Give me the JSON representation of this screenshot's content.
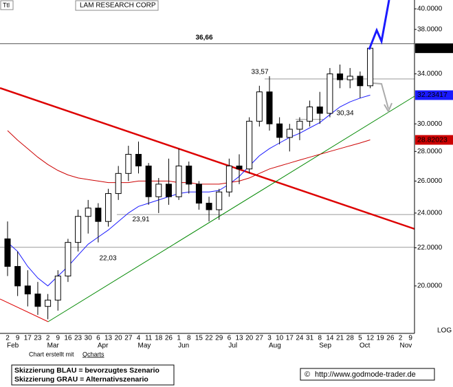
{
  "chart_data": {
    "type": "candlestick",
    "title": "LAM RESEARCH CORP",
    "icon": "Ttl",
    "categories": [
      "2",
      "9",
      "17",
      "23",
      "2",
      "9",
      "16",
      "23",
      "30",
      "6",
      "13",
      "20",
      "27",
      "4",
      "11",
      "18",
      "26",
      "1",
      "8",
      "15",
      "22",
      "29",
      "6",
      "13",
      "20",
      "27",
      "3",
      "10",
      "17",
      "24",
      "31",
      "8",
      "14",
      "21",
      "28",
      "5",
      "12",
      "19",
      "26",
      "2",
      "9"
    ],
    "month_labels": [
      {
        "at": 0,
        "label": "Feb"
      },
      {
        "at": 4,
        "label": "Mar"
      },
      {
        "at": 9,
        "label": "Apr"
      },
      {
        "at": 13,
        "label": "May"
      },
      {
        "at": 17,
        "label": "Jun"
      },
      {
        "at": 22,
        "label": "Jul"
      },
      {
        "at": 26,
        "label": "Aug"
      },
      {
        "at": 31,
        "label": "Sep"
      },
      {
        "at": 35,
        "label": "Oct"
      },
      {
        "at": 39,
        "label": "Nov"
      }
    ],
    "open": [
      22.5,
      21,
      20,
      19.6,
      19,
      19.3,
      20.5,
      22.3,
      23.8,
      24.3,
      23.5,
      25.2,
      26.5,
      27.8,
      27,
      25,
      25.8,
      25,
      27,
      25.8,
      24.6,
      24.2,
      25.3,
      27,
      26.8,
      30.2,
      32.5,
      30,
      29,
      29.6,
      30.2,
      31.3,
      30.8,
      34,
      33.5,
      33.8,
      33,
      null,
      null,
      null,
      null
    ],
    "high": [
      23.5,
      21.8,
      20.8,
      20.2,
      19.6,
      20.8,
      22.5,
      24.2,
      24.8,
      24.6,
      25.5,
      27,
      28.4,
      28.7,
      27.2,
      26.2,
      27.5,
      28.2,
      27.3,
      26,
      25,
      25.5,
      27.5,
      27.8,
      30.5,
      33,
      33.8,
      30.5,
      30,
      30.5,
      31.8,
      32.5,
      34.5,
      34.8,
      34.5,
      34.2,
      36.3,
      null,
      null,
      null,
      null
    ],
    "low": [
      20.5,
      19.5,
      19,
      18.6,
      18.4,
      18.8,
      20.2,
      21.8,
      22.8,
      22.3,
      23.2,
      24.8,
      26,
      26.5,
      24.5,
      24,
      24.5,
      24.8,
      25.2,
      24.2,
      23.5,
      23.6,
      25,
      25.8,
      26.5,
      29.8,
      29.5,
      28.5,
      28,
      28.8,
      29.8,
      30,
      30.5,
      32.8,
      32.8,
      32,
      32.8,
      null,
      null,
      null,
      null
    ],
    "close": [
      21,
      20,
      19.6,
      19,
      19.3,
      20.5,
      22.3,
      23.8,
      24.3,
      23.5,
      25.2,
      26.5,
      27.8,
      27,
      25,
      25.8,
      25,
      27,
      25.8,
      24.6,
      24.2,
      25.3,
      27,
      26.8,
      30.2,
      32.5,
      30,
      29,
      29.6,
      30.2,
      31.3,
      30.8,
      34,
      33.5,
      33.8,
      33,
      36.2508,
      null,
      null,
      null,
      null
    ],
    "series": [
      {
        "color": "#1a1aff",
        "values": [
          22.3,
          21.8,
          21,
          20.4,
          20,
          20.5,
          21,
          21.6,
          22.2,
          22.6,
          23,
          23.5,
          24,
          24.4,
          24.6,
          24.8,
          25,
          25.2,
          25.3,
          25.3,
          25.3,
          25.4,
          25.8,
          26.3,
          27,
          27.7,
          28.2,
          28.6,
          29,
          29.3,
          29.7,
          30.1,
          30.7,
          31.3,
          31.7,
          32,
          32.23417,
          null,
          null,
          null,
          null
        ]
      },
      {
        "color": "#cc0000",
        "values": [
          29.5,
          28.8,
          28.2,
          27.6,
          27.1,
          26.7,
          26.4,
          26.2,
          26.1,
          26,
          25.9,
          25.9,
          25.9,
          26,
          26,
          26,
          26,
          25.9,
          25.9,
          25.8,
          25.8,
          25.8,
          25.9,
          26,
          26.2,
          26.5,
          26.8,
          27,
          27.2,
          27.4,
          27.6,
          27.8,
          28,
          28.2,
          28.4,
          28.6,
          28.82023,
          null,
          null,
          null,
          null
        ]
      }
    ],
    "log_scale": true,
    "axis_label": "LOG",
    "xlim": [
      -0.75,
      40.4
    ],
    "ylim": [
      17.76,
      40.9
    ],
    "yticks": [
      {
        "value": 40,
        "label": "40.0000"
      },
      {
        "value": 38,
        "label": "38.0000"
      },
      {
        "value": 34,
        "label": "34.0000"
      },
      {
        "value": 30,
        "label": "30.0000"
      },
      {
        "value": 28,
        "label": "28.0000"
      },
      {
        "value": 26,
        "label": "26.0000"
      },
      {
        "value": 24,
        "label": "24.0000"
      },
      {
        "value": 22,
        "label": "22.0000"
      },
      {
        "value": 20,
        "label": "20.0000"
      }
    ],
    "levels": [
      {
        "value": 36.66,
        "label": "36,66"
      },
      {
        "value": 33.57,
        "label": "33,57"
      },
      {
        "value": 30.34,
        "label": "30,34"
      },
      {
        "value": 23.91,
        "label": "23,91"
      },
      {
        "value": 22.03,
        "label": "22,03"
      }
    ],
    "credit": "Chart erstellt mit",
    "credit_link": "Qcharts",
    "legend_lines": [
      "Skizzierung BLAU = bevorzugtes Szenario",
      "Skizzierung GRAU = Alternativszenario"
    ],
    "copyright": "http://www.godmode-trader.de"
  }
}
